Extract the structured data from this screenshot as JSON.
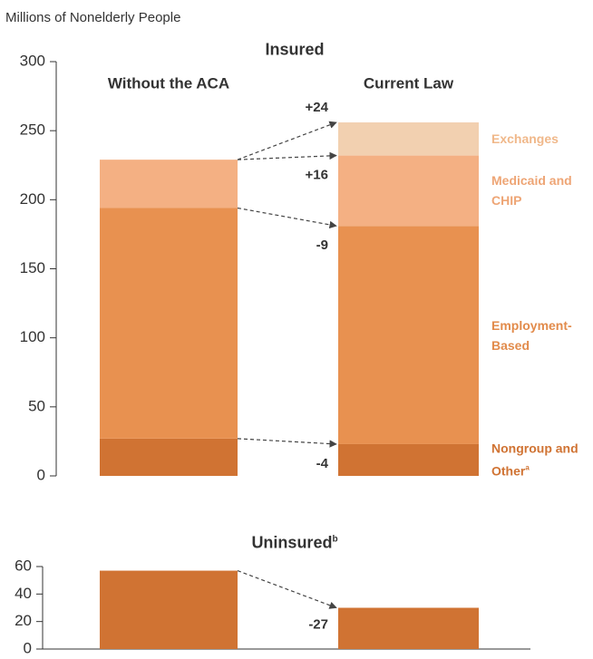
{
  "chart_data": [
    {
      "type": "stacked_bar",
      "title": "Insured",
      "y_label": "Millions of Nonelderly People",
      "categories": [
        "Without the ACA",
        "Current Law"
      ],
      "series": [
        {
          "name": "Nongroup and Other",
          "footnote": "a",
          "color": "#d07333",
          "label_color": "#d07333",
          "values": [
            27,
            23
          ]
        },
        {
          "name": "Employment-Based",
          "color": "#e89150",
          "label_color": "#e28b4b",
          "values": [
            167,
            158
          ]
        },
        {
          "name": "Medicaid and CHIP",
          "color": "#f4b083",
          "label_color": "#eea575",
          "values": [
            35,
            51
          ]
        },
        {
          "name": "Exchanges",
          "color": "#f2d0b0",
          "label_color": "#f0b88a",
          "values": [
            0,
            24
          ]
        }
      ],
      "annotations": [
        "-4",
        "-9",
        "+16",
        "+24"
      ],
      "ylim": [
        0,
        300
      ],
      "yticks": [
        0,
        50,
        100,
        150,
        200,
        250,
        300
      ]
    },
    {
      "type": "bar",
      "title": "Uninsured",
      "footnote": "b",
      "values": [
        57,
        30
      ],
      "color": "#d07333",
      "annotations": [
        "-27"
      ],
      "ylim": [
        0,
        60
      ],
      "yticks": [
        0,
        20,
        40,
        60
      ]
    }
  ]
}
